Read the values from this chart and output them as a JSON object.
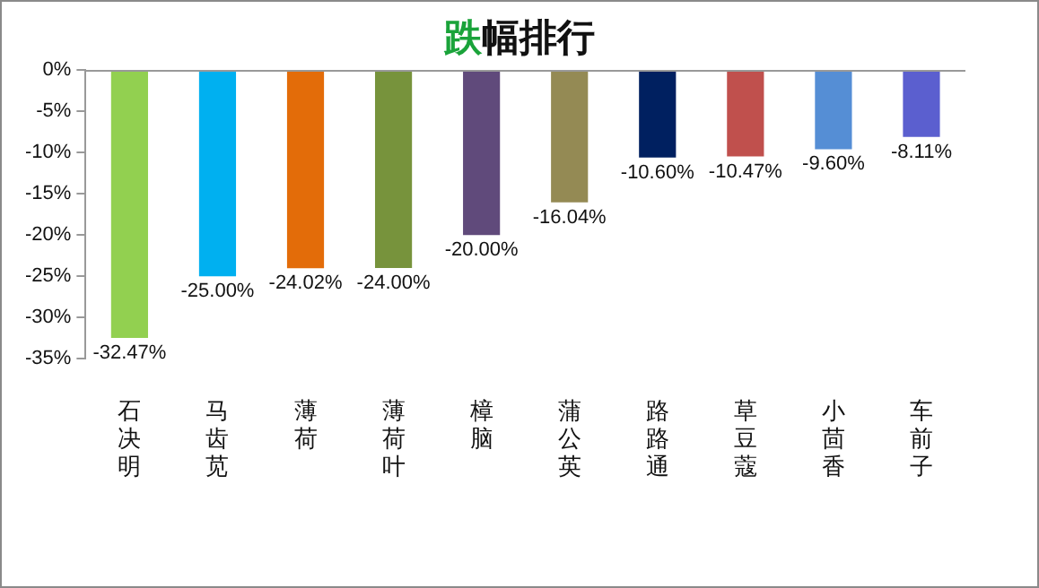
{
  "chart_data": {
    "type": "bar",
    "title": "跌幅排行",
    "categories": [
      "石决明",
      "马齿苋",
      "薄荷",
      "薄荷叶",
      "樟脑",
      "蒲公英",
      "路路通",
      "草豆蔻",
      "小茴香",
      "车前子"
    ],
    "values": [
      -32.47,
      -25.0,
      -24.02,
      -24.0,
      -20.0,
      -16.04,
      -10.6,
      -10.47,
      -9.6,
      -8.11
    ],
    "value_labels": [
      "-32.47%",
      "-25.00%",
      "-24.02%",
      "-24.00%",
      "-20.00%",
      "-16.04%",
      "-10.60%",
      "-10.47%",
      "-9.60%",
      "-8.11%"
    ],
    "colors": [
      "#92d050",
      "#00b0f0",
      "#e36c09",
      "#77933c",
      "#604a7b",
      "#948a54",
      "#002060",
      "#c0504d",
      "#558ed5",
      "#5b5fcf"
    ],
    "ylim": [
      -35,
      0
    ],
    "yticks": [
      {
        "value": 0,
        "label": "0%"
      },
      {
        "value": -5,
        "label": "-5%"
      },
      {
        "value": -10,
        "label": "-10%"
      },
      {
        "value": -15,
        "label": "-15%"
      },
      {
        "value": -20,
        "label": "-20%"
      },
      {
        "value": -25,
        "label": "-25%"
      },
      {
        "value": -30,
        "label": "-30%"
      },
      {
        "value": -35,
        "label": "-35%"
      }
    ],
    "grid": false,
    "legend": false
  }
}
